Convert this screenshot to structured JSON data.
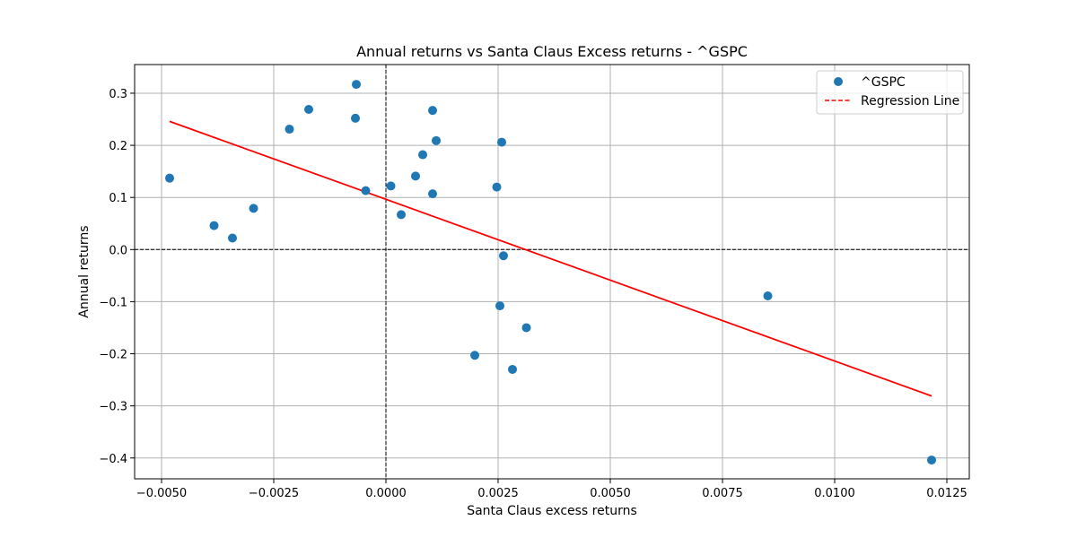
{
  "chart_data": {
    "type": "scatter",
    "title": "Annual returns vs Santa Claus Excess returns - ^GSPC",
    "xlabel": "Santa Claus excess returns",
    "ylabel": "Annual returns",
    "xlim": [
      -0.0056,
      0.013
    ],
    "ylim": [
      -0.44,
      0.355
    ],
    "xticks": [
      -0.005,
      -0.0025,
      0.0,
      0.0025,
      0.005,
      0.0075,
      0.01,
      0.0125
    ],
    "xtick_labels": [
      "−0.0050",
      "−0.0025",
      "0.0000",
      "0.0025",
      "0.0050",
      "0.0075",
      "0.0100",
      "0.0125"
    ],
    "yticks": [
      -0.4,
      -0.3,
      -0.2,
      -0.1,
      0.0,
      0.1,
      0.2,
      0.3
    ],
    "ytick_labels": [
      "−0.4",
      "−0.3",
      "−0.2",
      "−0.1",
      "0.0",
      "0.1",
      "0.2",
      "0.3"
    ],
    "grid": true,
    "legend_position": "top-right",
    "reference_lines": {
      "x": 0.0,
      "y": 0.0,
      "style": "dashed",
      "color": "#000000"
    },
    "series": [
      {
        "name": "^GSPC",
        "kind": "scatter",
        "color": "#1f77b4",
        "points": [
          [
            -0.00482,
            0.137
          ],
          [
            -0.00383,
            0.046
          ],
          [
            -0.00342,
            0.022
          ],
          [
            -0.00295,
            0.079
          ],
          [
            -0.00215,
            0.231
          ],
          [
            -0.00172,
            0.269
          ],
          [
            -0.00068,
            0.252
          ],
          [
            -0.00066,
            0.317
          ],
          [
            -0.00045,
            0.113
          ],
          [
            0.00011,
            0.122
          ],
          [
            0.00034,
            0.067
          ],
          [
            0.00066,
            0.141
          ],
          [
            0.00082,
            0.182
          ],
          [
            0.00104,
            0.267
          ],
          [
            0.00104,
            0.107
          ],
          [
            0.00112,
            0.209
          ],
          [
            0.00198,
            -0.203
          ],
          [
            0.00247,
            0.12
          ],
          [
            0.00254,
            -0.108
          ],
          [
            0.00258,
            0.206
          ],
          [
            0.00262,
            -0.012
          ],
          [
            0.00282,
            -0.23
          ],
          [
            0.00313,
            -0.15
          ],
          [
            0.00851,
            -0.089
          ],
          [
            0.01216,
            -0.404
          ]
        ]
      },
      {
        "name": "Regression Line",
        "kind": "line",
        "style": "dashed",
        "color": "#ff0000",
        "x": [
          -0.00482,
          0.01216
        ],
        "y": [
          0.246,
          -0.281
        ]
      }
    ]
  }
}
